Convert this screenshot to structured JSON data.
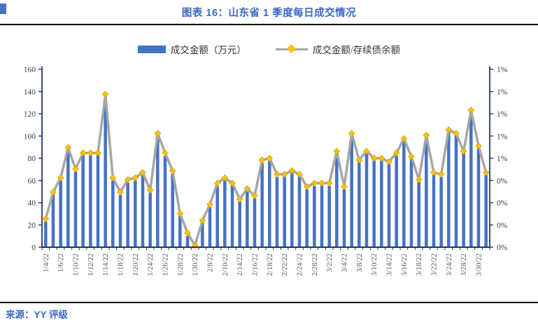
{
  "header": {
    "title": "图表 16：山东省 1 季度每日成交情况"
  },
  "legend": {
    "bar_label": "成交金额（万元）",
    "line_label": "成交金额/存续债余额"
  },
  "footer": {
    "source": "来源：YY 评级"
  },
  "colors": {
    "bar": "#4472C4",
    "line": "#A6A6A6",
    "marker": "#FFC000",
    "marker_edge": "#D6A400",
    "title": "#3A68C4",
    "axis": "#1F3864",
    "axis_text": "#404040",
    "date_text": "#595959"
  },
  "chart_data": {
    "type": "bar",
    "title": "图表 16：山东省 1 季度每日成交情况",
    "x_labels": [
      "1/4/22",
      "1/6/22",
      "1/10/22",
      "1/12/22",
      "1/14/22",
      "1/18/22",
      "1/20/22",
      "1/24/22",
      "1/26/22",
      "1/28/22",
      "1/30/22",
      "2/8/22",
      "2/10/22",
      "2/14/22",
      "2/16/22",
      "2/18/22",
      "2/22/22",
      "2/24/22",
      "2/28/22",
      "3/2/22",
      "3/4/22",
      "3/8/22",
      "3/10/22",
      "3/14/22",
      "3/16/22",
      "3/18/22",
      "3/22/22",
      "3/24/22",
      "3/28/22",
      "3/30/22"
    ],
    "label_every_n_bars": 2,
    "series": [
      {
        "name": "成交金额（万元）",
        "type": "bar",
        "axis": "left",
        "values": [
          23,
          48,
          60,
          87,
          68,
          83,
          83,
          83,
          136,
          60,
          47,
          58,
          60,
          65,
          49,
          101,
          82,
          66,
          28,
          10,
          1,
          22,
          36,
          55,
          60,
          56,
          41,
          50,
          44,
          76,
          78,
          63,
          64,
          67,
          64,
          52,
          55,
          56,
          55,
          84,
          52,
          100,
          77,
          85,
          78,
          78,
          75,
          82,
          95,
          80,
          59,
          99,
          65,
          63,
          104,
          101,
          85,
          121,
          89,
          65
        ]
      },
      {
        "name": "成交金额/存续债余额",
        "type": "line",
        "axis": "right",
        "unit": "%",
        "values": [
          0.16,
          0.31,
          0.39,
          0.56,
          0.44,
          0.53,
          0.53,
          0.53,
          0.86,
          0.39,
          0.31,
          0.38,
          0.39,
          0.42,
          0.32,
          0.64,
          0.53,
          0.43,
          0.19,
          0.08,
          0.01,
          0.15,
          0.24,
          0.36,
          0.39,
          0.36,
          0.27,
          0.33,
          0.29,
          0.49,
          0.5,
          0.41,
          0.41,
          0.43,
          0.41,
          0.34,
          0.36,
          0.36,
          0.36,
          0.54,
          0.34,
          0.64,
          0.49,
          0.54,
          0.5,
          0.5,
          0.48,
          0.53,
          0.61,
          0.51,
          0.38,
          0.63,
          0.42,
          0.41,
          0.66,
          0.64,
          0.54,
          0.77,
          0.57,
          0.42
        ]
      }
    ],
    "left_axis": {
      "min": 0,
      "max": 160,
      "tick_labels": [
        "0",
        "20",
        "40",
        "60",
        "80",
        "100",
        "120",
        "140",
        "160"
      ]
    },
    "right_axis": {
      "min_pct": 0,
      "max_pct": 1,
      "tick_labels": [
        "0%",
        "0%",
        "0%",
        "0%",
        "1%",
        "1%",
        "1%",
        "1%",
        "1%"
      ]
    },
    "grid": "off",
    "legend_position": "top"
  }
}
